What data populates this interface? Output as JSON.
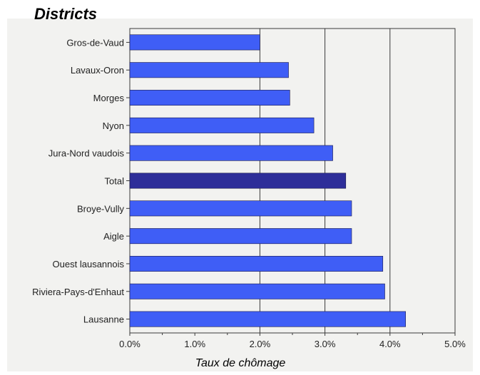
{
  "chart_data": {
    "type": "bar",
    "orientation": "horizontal",
    "title": "Districts",
    "xlabel": "Taux de chômage",
    "ylabel": "",
    "categories": [
      "Gros-de-Vaud",
      "Lavaux-Oron",
      "Morges",
      "Nyon",
      "Jura-Nord vaudois",
      "Total",
      "Broye-Vully",
      "Aigle",
      "Ouest lausannois",
      "Riviera-Pays-d'Enhaut",
      "Lausanne"
    ],
    "values": [
      0.02,
      0.0244,
      0.0246,
      0.0283,
      0.0312,
      0.0332,
      0.0341,
      0.0341,
      0.0389,
      0.0392,
      0.0424
    ],
    "highlight_category": "Total",
    "xlim": [
      0,
      0.05
    ],
    "xticks": [
      "0.0%",
      "1.0%",
      "2.0%",
      "3.0%",
      "4.0%",
      "5.0%"
    ],
    "grid": "vertical major lines",
    "colors": {
      "bar": "#3F5EF6",
      "bar_highlight": "#2E2E99",
      "bar_edge": "#1A1A4A",
      "plot_background": "#F2F2F0",
      "gridline": "#3A3A3A"
    }
  }
}
